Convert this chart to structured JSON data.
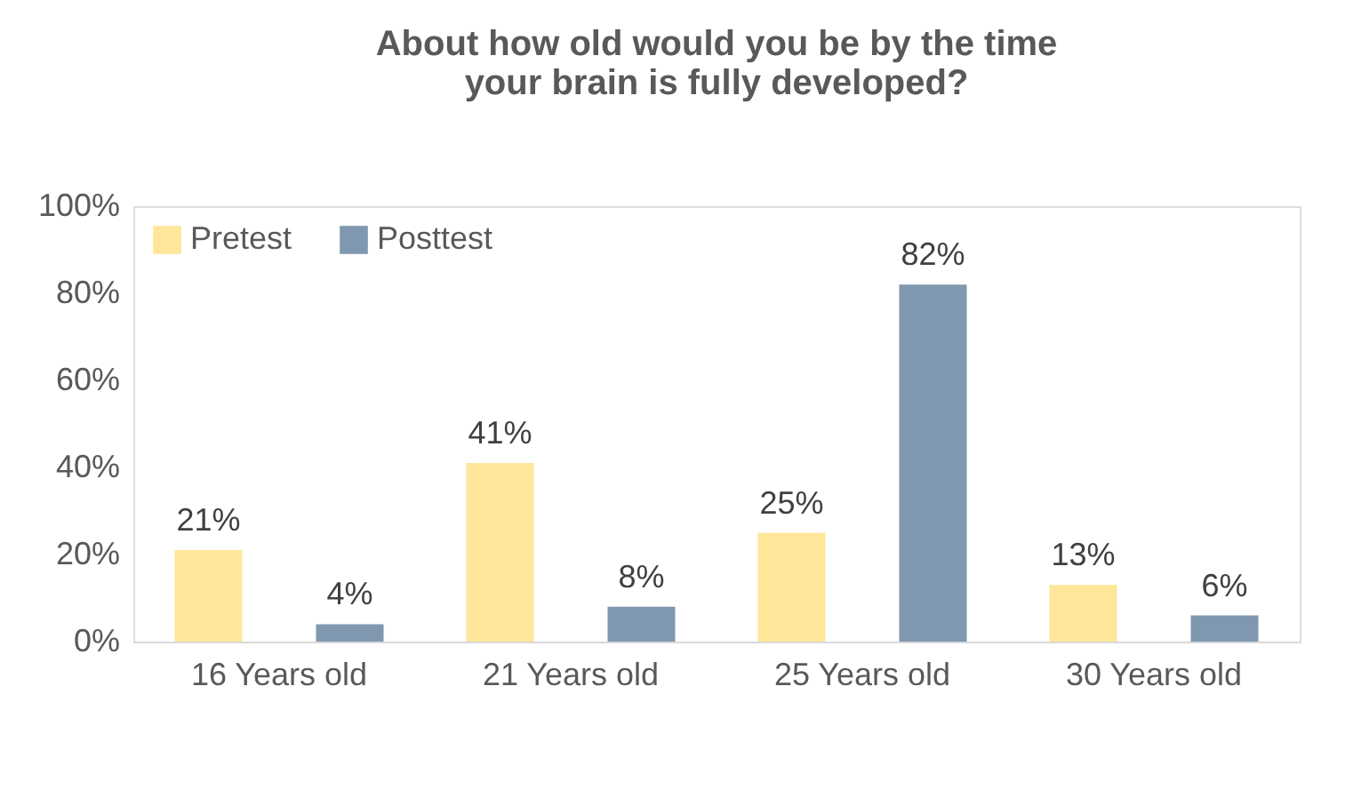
{
  "chart_data": {
    "type": "bar",
    "title": "About how old would you be by the time\nyour brain is fully developed?",
    "categories": [
      "16 Years old",
      "21 Years old",
      "25 Years old",
      "30 Years old"
    ],
    "series": [
      {
        "name": "Pretest",
        "color": "#ffe699",
        "values": [
          21,
          41,
          25,
          13
        ],
        "value_labels": [
          "21%",
          "41%",
          "25%",
          "13%"
        ]
      },
      {
        "name": "Posttest",
        "color": "#7f98b0",
        "values": [
          4,
          8,
          82,
          6
        ],
        "value_labels": [
          "4%",
          "8%",
          "82%",
          "6%"
        ]
      }
    ],
    "ylim": [
      0,
      100
    ],
    "yticks": [
      {
        "value": 0,
        "label": "0%"
      },
      {
        "value": 20,
        "label": "20%"
      },
      {
        "value": 40,
        "label": "40%"
      },
      {
        "value": 60,
        "label": "60%"
      },
      {
        "value": 80,
        "label": "80%"
      },
      {
        "value": 100,
        "label": "100%"
      }
    ],
    "grid": false,
    "legend": "top left"
  }
}
